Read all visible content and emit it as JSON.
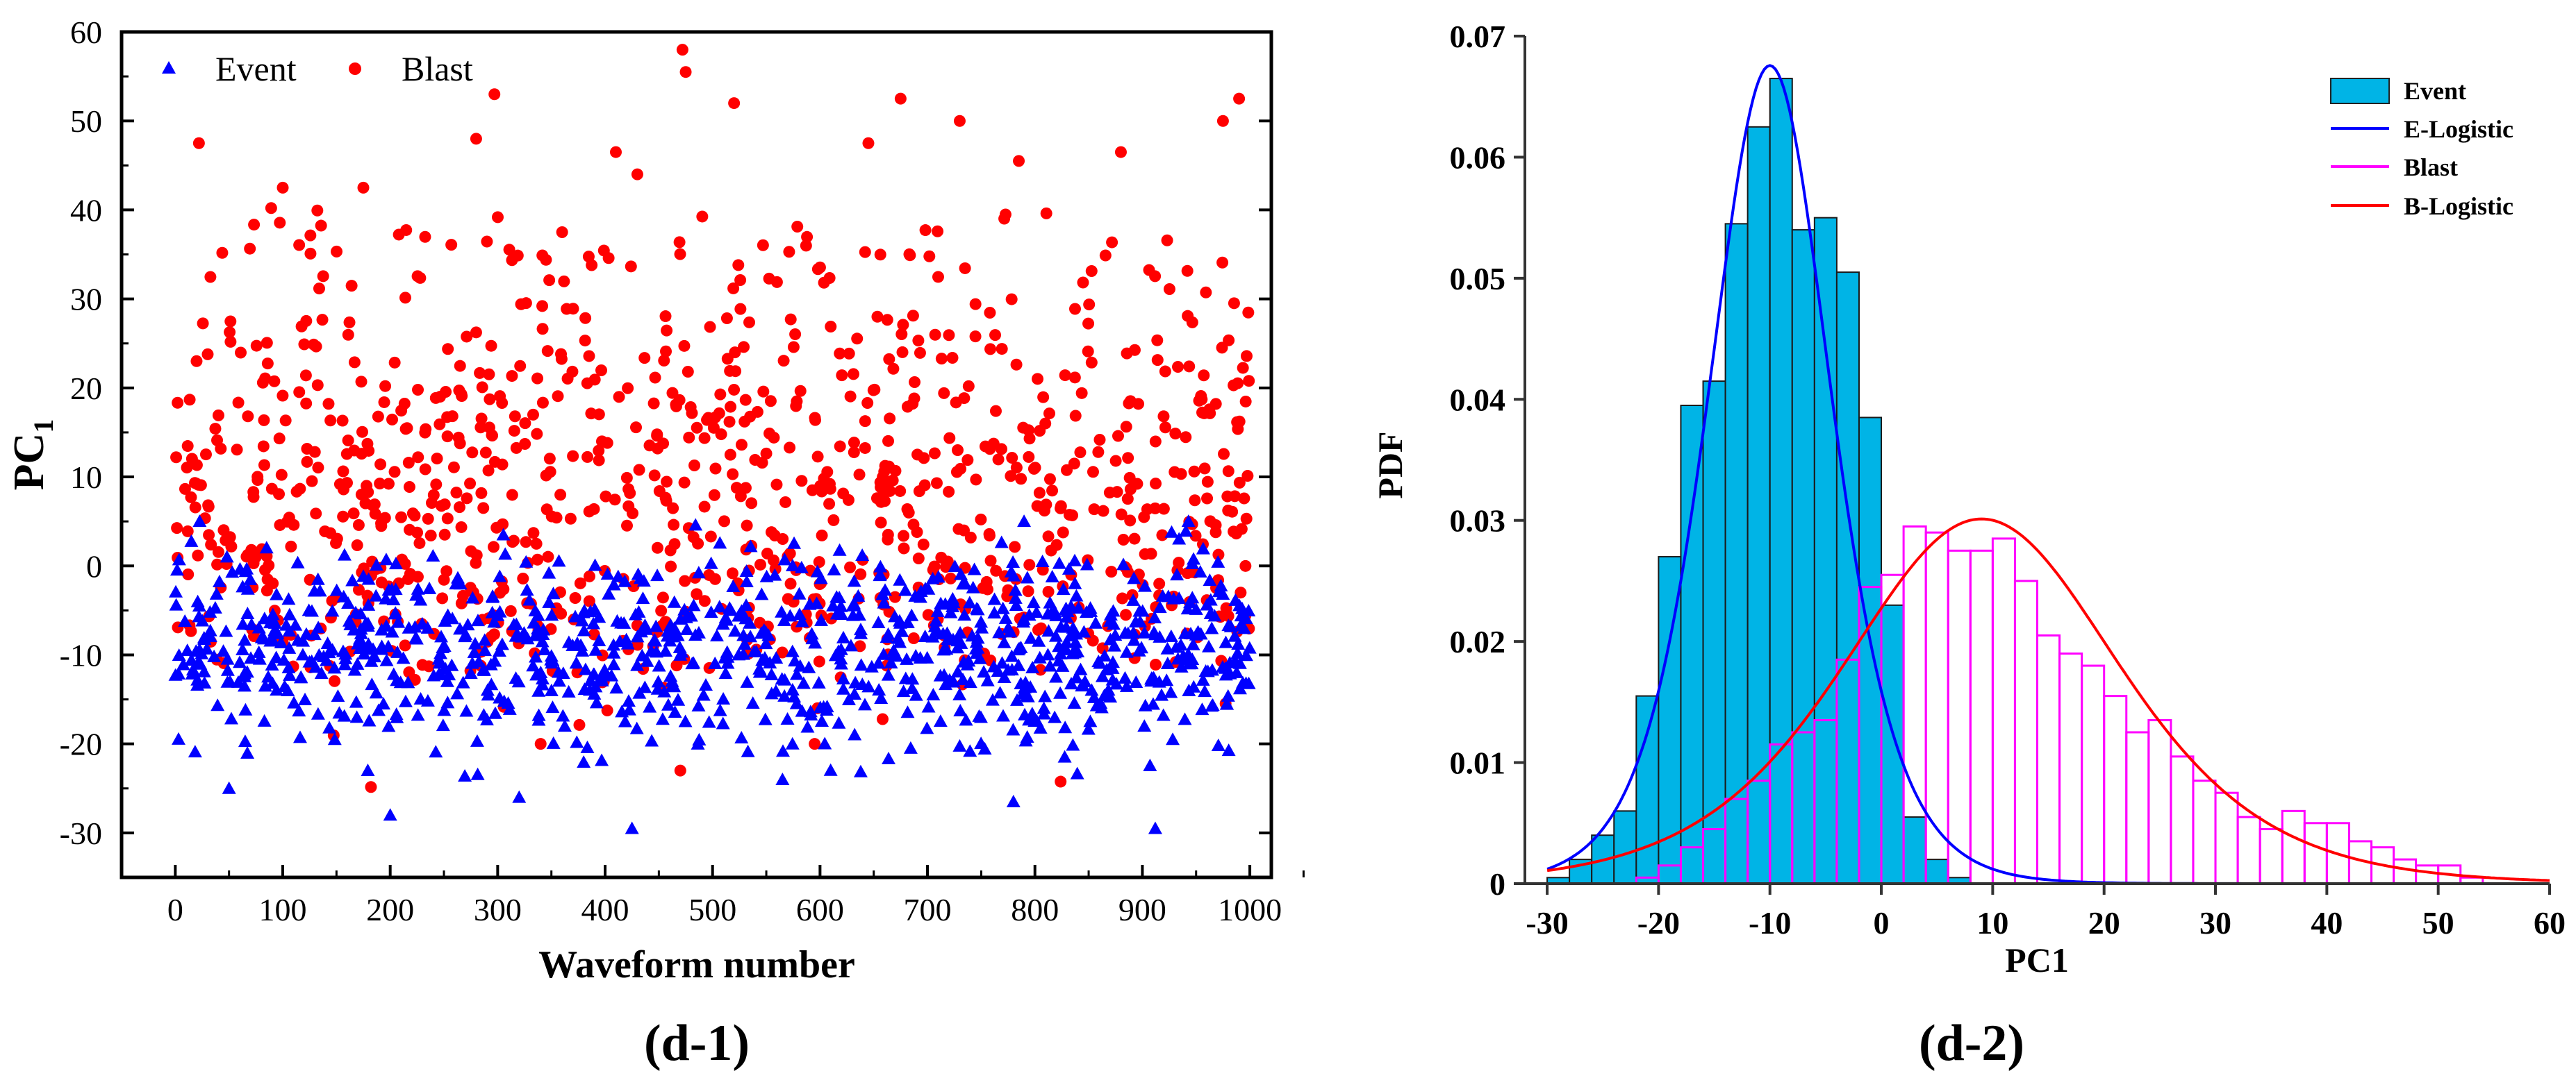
{
  "chart_data": [
    {
      "type": "scatter",
      "panel_label": "d-1",
      "xlabel": "Waveform number",
      "ylabel_main": "PC",
      "ylabel_sub": "1",
      "xlim": [
        -50,
        1020
      ],
      "ylim": [
        -35,
        60
      ],
      "xticks": [
        0,
        100,
        200,
        300,
        400,
        500,
        600,
        700,
        800,
        900,
        1000
      ],
      "yticks": [
        -30,
        -20,
        -10,
        0,
        10,
        20,
        30,
        40,
        50,
        60
      ],
      "legend": {
        "position": "top-left",
        "entries": [
          "Event",
          "Blast"
        ]
      },
      "colors": {
        "Event": "#0000ff",
        "Blast": "#ff0000"
      },
      "series": [
        {
          "name": "Event",
          "marker": "triangle",
          "n": 1000,
          "x_range": [
            0,
            1000
          ],
          "typical_range": [
            -20,
            2
          ],
          "center": -9,
          "outliers": [
            {
              "x": 200,
              "y": -28
            },
            {
              "x": 425,
              "y": -29.5
            },
            {
              "x": 912,
              "y": -29.5
            },
            {
              "x": 780,
              "y": -26.5
            },
            {
              "x": 50,
              "y": -25
            },
            {
              "x": 320,
              "y": -26
            }
          ]
        },
        {
          "name": "Blast",
          "marker": "circle",
          "n": 1000,
          "x_range": [
            0,
            1000
          ],
          "typical_range": [
            -15,
            35
          ],
          "center": 8,
          "outliers": [
            {
              "x": 472,
              "y": 58
            },
            {
              "x": 475,
              "y": 55.5
            },
            {
              "x": 297,
              "y": 53
            },
            {
              "x": 520,
              "y": 52
            },
            {
              "x": 990,
              "y": 52.5
            },
            {
              "x": 675,
              "y": 52.5
            },
            {
              "x": 730,
              "y": 50
            },
            {
              "x": 975,
              "y": 50
            },
            {
              "x": 22,
              "y": 47.5
            },
            {
              "x": 645,
              "y": 47.5
            },
            {
              "x": 410,
              "y": 46.5
            },
            {
              "x": 880,
              "y": 46.5
            },
            {
              "x": 280,
              "y": 48
            },
            {
              "x": 785,
              "y": 45.5
            },
            {
              "x": 100,
              "y": 42.5
            },
            {
              "x": 175,
              "y": 42.5
            },
            {
              "x": 360,
              "y": 37.5
            },
            {
              "x": 430,
              "y": 44
            },
            {
              "x": 470,
              "y": -23
            },
            {
              "x": 340,
              "y": -20
            },
            {
              "x": 595,
              "y": -20
            }
          ]
        }
      ]
    },
    {
      "type": "histogram",
      "panel_label": "d-2",
      "xlabel": "PC1",
      "ylabel": "PDF",
      "xlim": [
        -32,
        60
      ],
      "ylim": [
        0,
        0.07
      ],
      "xticks": [
        -30,
        -20,
        -10,
        0,
        10,
        20,
        30,
        40,
        50,
        60
      ],
      "yticks": [
        0,
        0.01,
        0.02,
        0.03,
        0.04,
        0.05,
        0.06,
        0.07
      ],
      "bin_width": 2,
      "legend": {
        "position": "top-right",
        "entries": [
          "Event",
          "E-Logistic",
          "Blast",
          "B-Logistic"
        ]
      },
      "colors": {
        "Event": "#00b4e6",
        "E-Logistic": "#0000ff",
        "Blast": "#ff00ff",
        "B-Logistic": "#ff0000"
      },
      "series": [
        {
          "name": "Event",
          "style": "filled",
          "bin_left": [
            -30,
            -28,
            -26,
            -24,
            -22,
            -20,
            -18,
            -16,
            -14,
            -12,
            -10,
            -8,
            -6,
            -4,
            -2,
            0,
            2,
            4,
            6
          ],
          "values": [
            0.0005,
            0.002,
            0.004,
            0.006,
            0.0155,
            0.027,
            0.0395,
            0.0415,
            0.0545,
            0.0625,
            0.0665,
            0.054,
            0.055,
            0.0505,
            0.0385,
            0.023,
            0.0055,
            0.002,
            0.0005
          ]
        },
        {
          "name": "Blast",
          "style": "outline",
          "bin_left": [
            -22,
            -20,
            -18,
            -16,
            -14,
            -12,
            -10,
            -8,
            -6,
            -4,
            -2,
            0,
            2,
            4,
            6,
            8,
            10,
            12,
            14,
            16,
            18,
            20,
            22,
            24,
            26,
            28,
            30,
            32,
            34,
            36,
            38,
            40,
            42,
            44,
            46,
            48,
            50,
            52
          ],
          "values": [
            0.0005,
            0.0015,
            0.003,
            0.0045,
            0.007,
            0.0085,
            0.0115,
            0.0125,
            0.0135,
            0.0185,
            0.0245,
            0.0255,
            0.0295,
            0.029,
            0.0275,
            0.0275,
            0.0285,
            0.025,
            0.0205,
            0.019,
            0.018,
            0.0155,
            0.0125,
            0.0135,
            0.0105,
            0.0085,
            0.0075,
            0.0055,
            0.0045,
            0.006,
            0.005,
            0.005,
            0.0035,
            0.003,
            0.002,
            0.0015,
            0.0015,
            0.0005
          ]
        },
        {
          "name": "E-Logistic",
          "style": "line",
          "location": -10,
          "scale": 3.7
        },
        {
          "name": "B-Logistic",
          "style": "line",
          "location": 9,
          "scale": 8.3
        }
      ]
    }
  ]
}
